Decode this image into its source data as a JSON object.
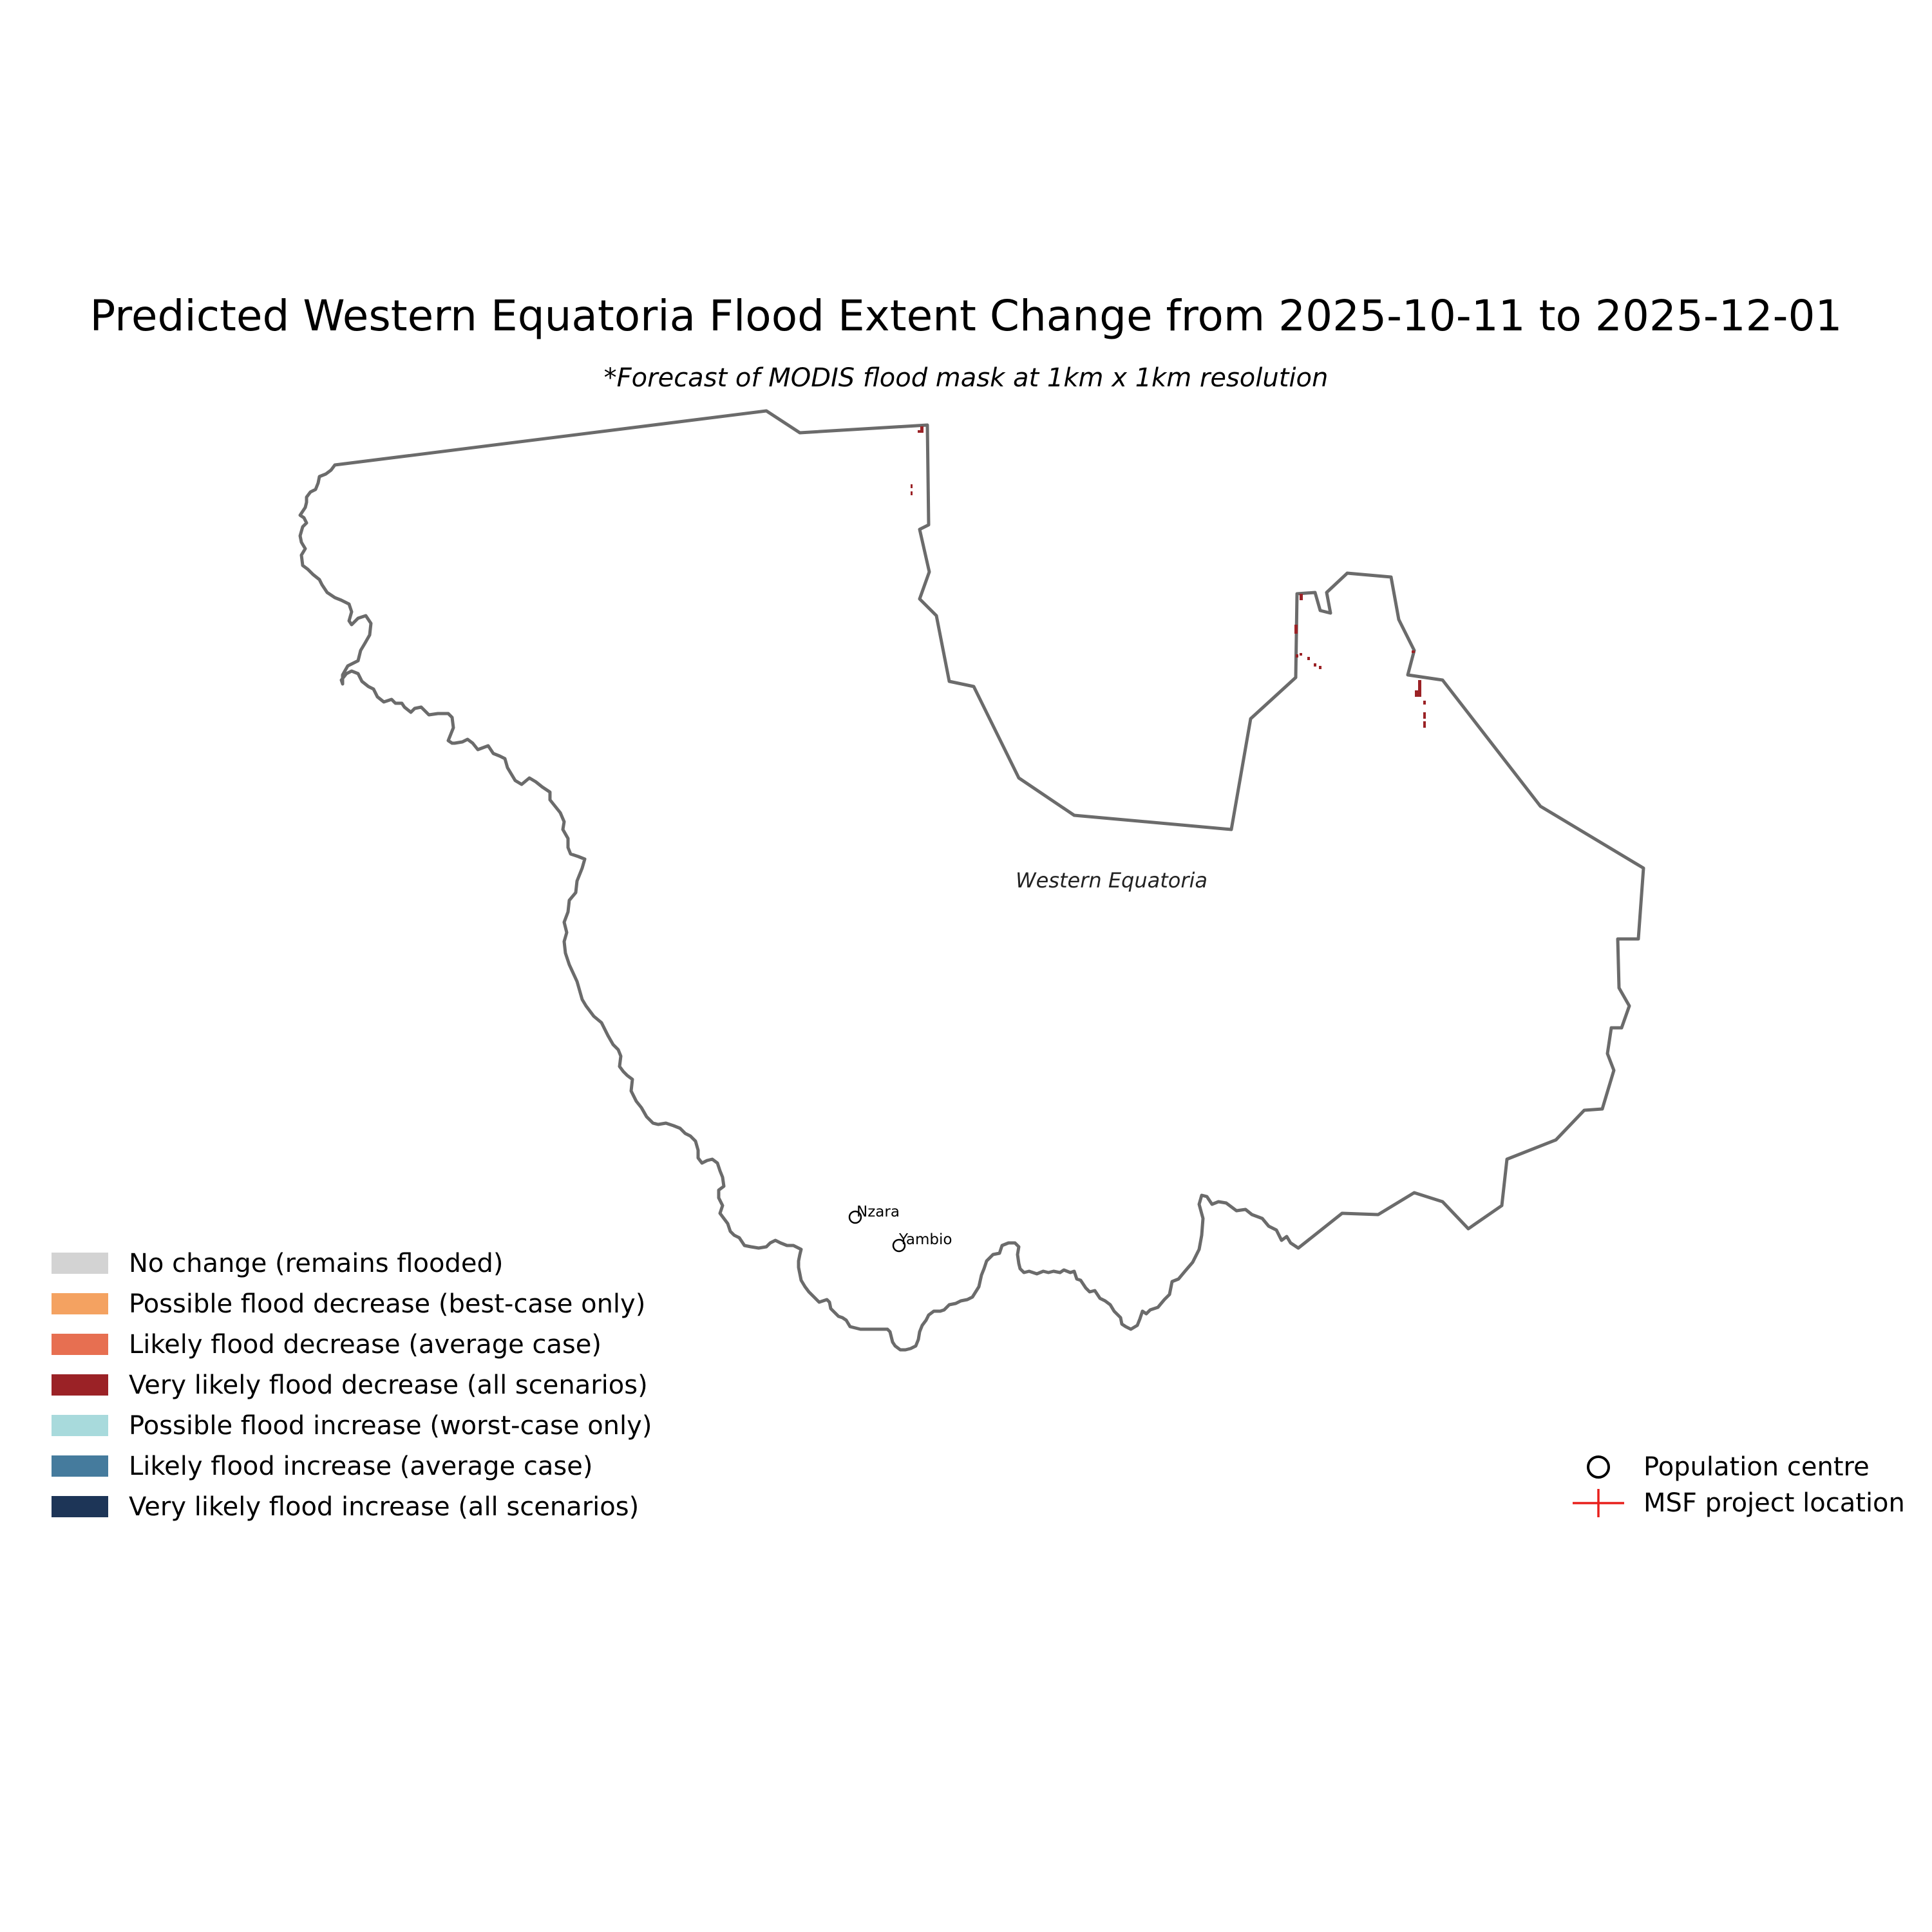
{
  "title": "Predicted Western Equatoria Flood Extent Change from 2025-10-11 to 2025-12-01",
  "subtitle": "*Forecast of MODIS flood mask at 1km x 1km resolution",
  "region_label": "Western Equatoria",
  "colors": {
    "border": "#6b6b6b",
    "flood_decrease_very_likely": "#9b2226",
    "msf_marker": "#e8201c"
  },
  "population_centres": [
    {
      "name": "Nzara"
    },
    {
      "name": "Yambio"
    }
  ],
  "legend": {
    "items": [
      {
        "label": "No change (remains flooded)",
        "color": "#d3d3d3"
      },
      {
        "label": "Possible flood decrease (best-case only)",
        "color": "#f4a261"
      },
      {
        "label": "Likely flood decrease (average case)",
        "color": "#e76f51"
      },
      {
        "label": "Very likely flood decrease (all scenarios)",
        "color": "#9b2226"
      },
      {
        "label": "Possible flood increase (worst-case only)",
        "color": "#a8dadc"
      },
      {
        "label": "Likely flood increase (average case)",
        "color": "#457b9d"
      },
      {
        "label": "Very likely flood increase (all scenarios)",
        "color": "#1d3557"
      }
    ]
  },
  "marker_legend": {
    "population_centre": "Population centre",
    "msf_project": "MSF project location"
  }
}
